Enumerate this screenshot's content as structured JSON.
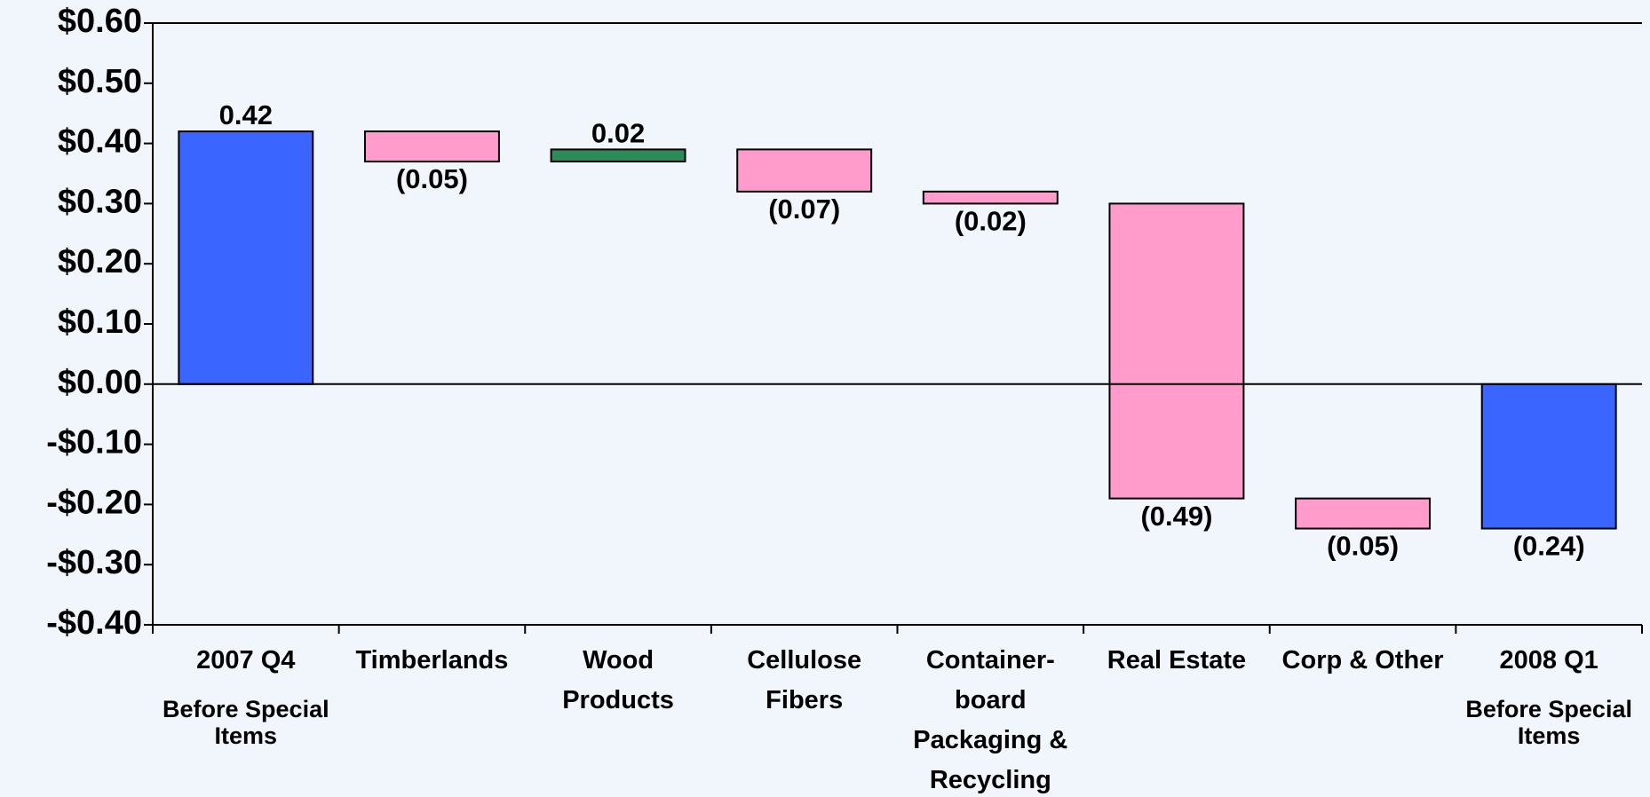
{
  "chart_data": {
    "type": "waterfall",
    "categories": [
      "2007 Q4",
      "Timberlands",
      "Wood\nProducts",
      "Cellulose\nFibers",
      "Container-\nboard\nPackaging &\nRecycling",
      "Real Estate",
      "Corp & Other",
      "2008 Q1"
    ],
    "category_notes": [
      "Before Special\nItems",
      null,
      null,
      null,
      null,
      null,
      null,
      "Before Special\nItems"
    ],
    "values": [
      0.42,
      -0.05,
      0.02,
      -0.07,
      -0.02,
      -0.49,
      -0.05,
      -0.24
    ],
    "value_labels": [
      "0.42",
      "(0.05)",
      "0.02",
      "(0.07)",
      "(0.02)",
      "(0.49)",
      "(0.05)",
      "(0.24)"
    ],
    "totals": [
      true,
      false,
      false,
      false,
      false,
      false,
      false,
      true
    ],
    "colors": {
      "total": "#3a66ff",
      "increase": "#2e8b57",
      "decrease": "#ff9ccc"
    },
    "ylim": [
      -0.4,
      0.6
    ],
    "yticks": [
      {
        "value": -0.4,
        "label": "-$0.40"
      },
      {
        "value": -0.3,
        "label": "-$0.30"
      },
      {
        "value": -0.2,
        "label": "-$0.20"
      },
      {
        "value": -0.1,
        "label": "-$0.10"
      },
      {
        "value": 0,
        "label": "$0.00"
      },
      {
        "value": 0.1,
        "label": "$0.10"
      },
      {
        "value": 0.2,
        "label": "$0.20"
      },
      {
        "value": 0.3,
        "label": "$0.30"
      },
      {
        "value": 0.4,
        "label": "$0.40"
      },
      {
        "value": 0.5,
        "label": "$0.50"
      },
      {
        "value": 0.6,
        "label": "$0.60"
      }
    ]
  }
}
